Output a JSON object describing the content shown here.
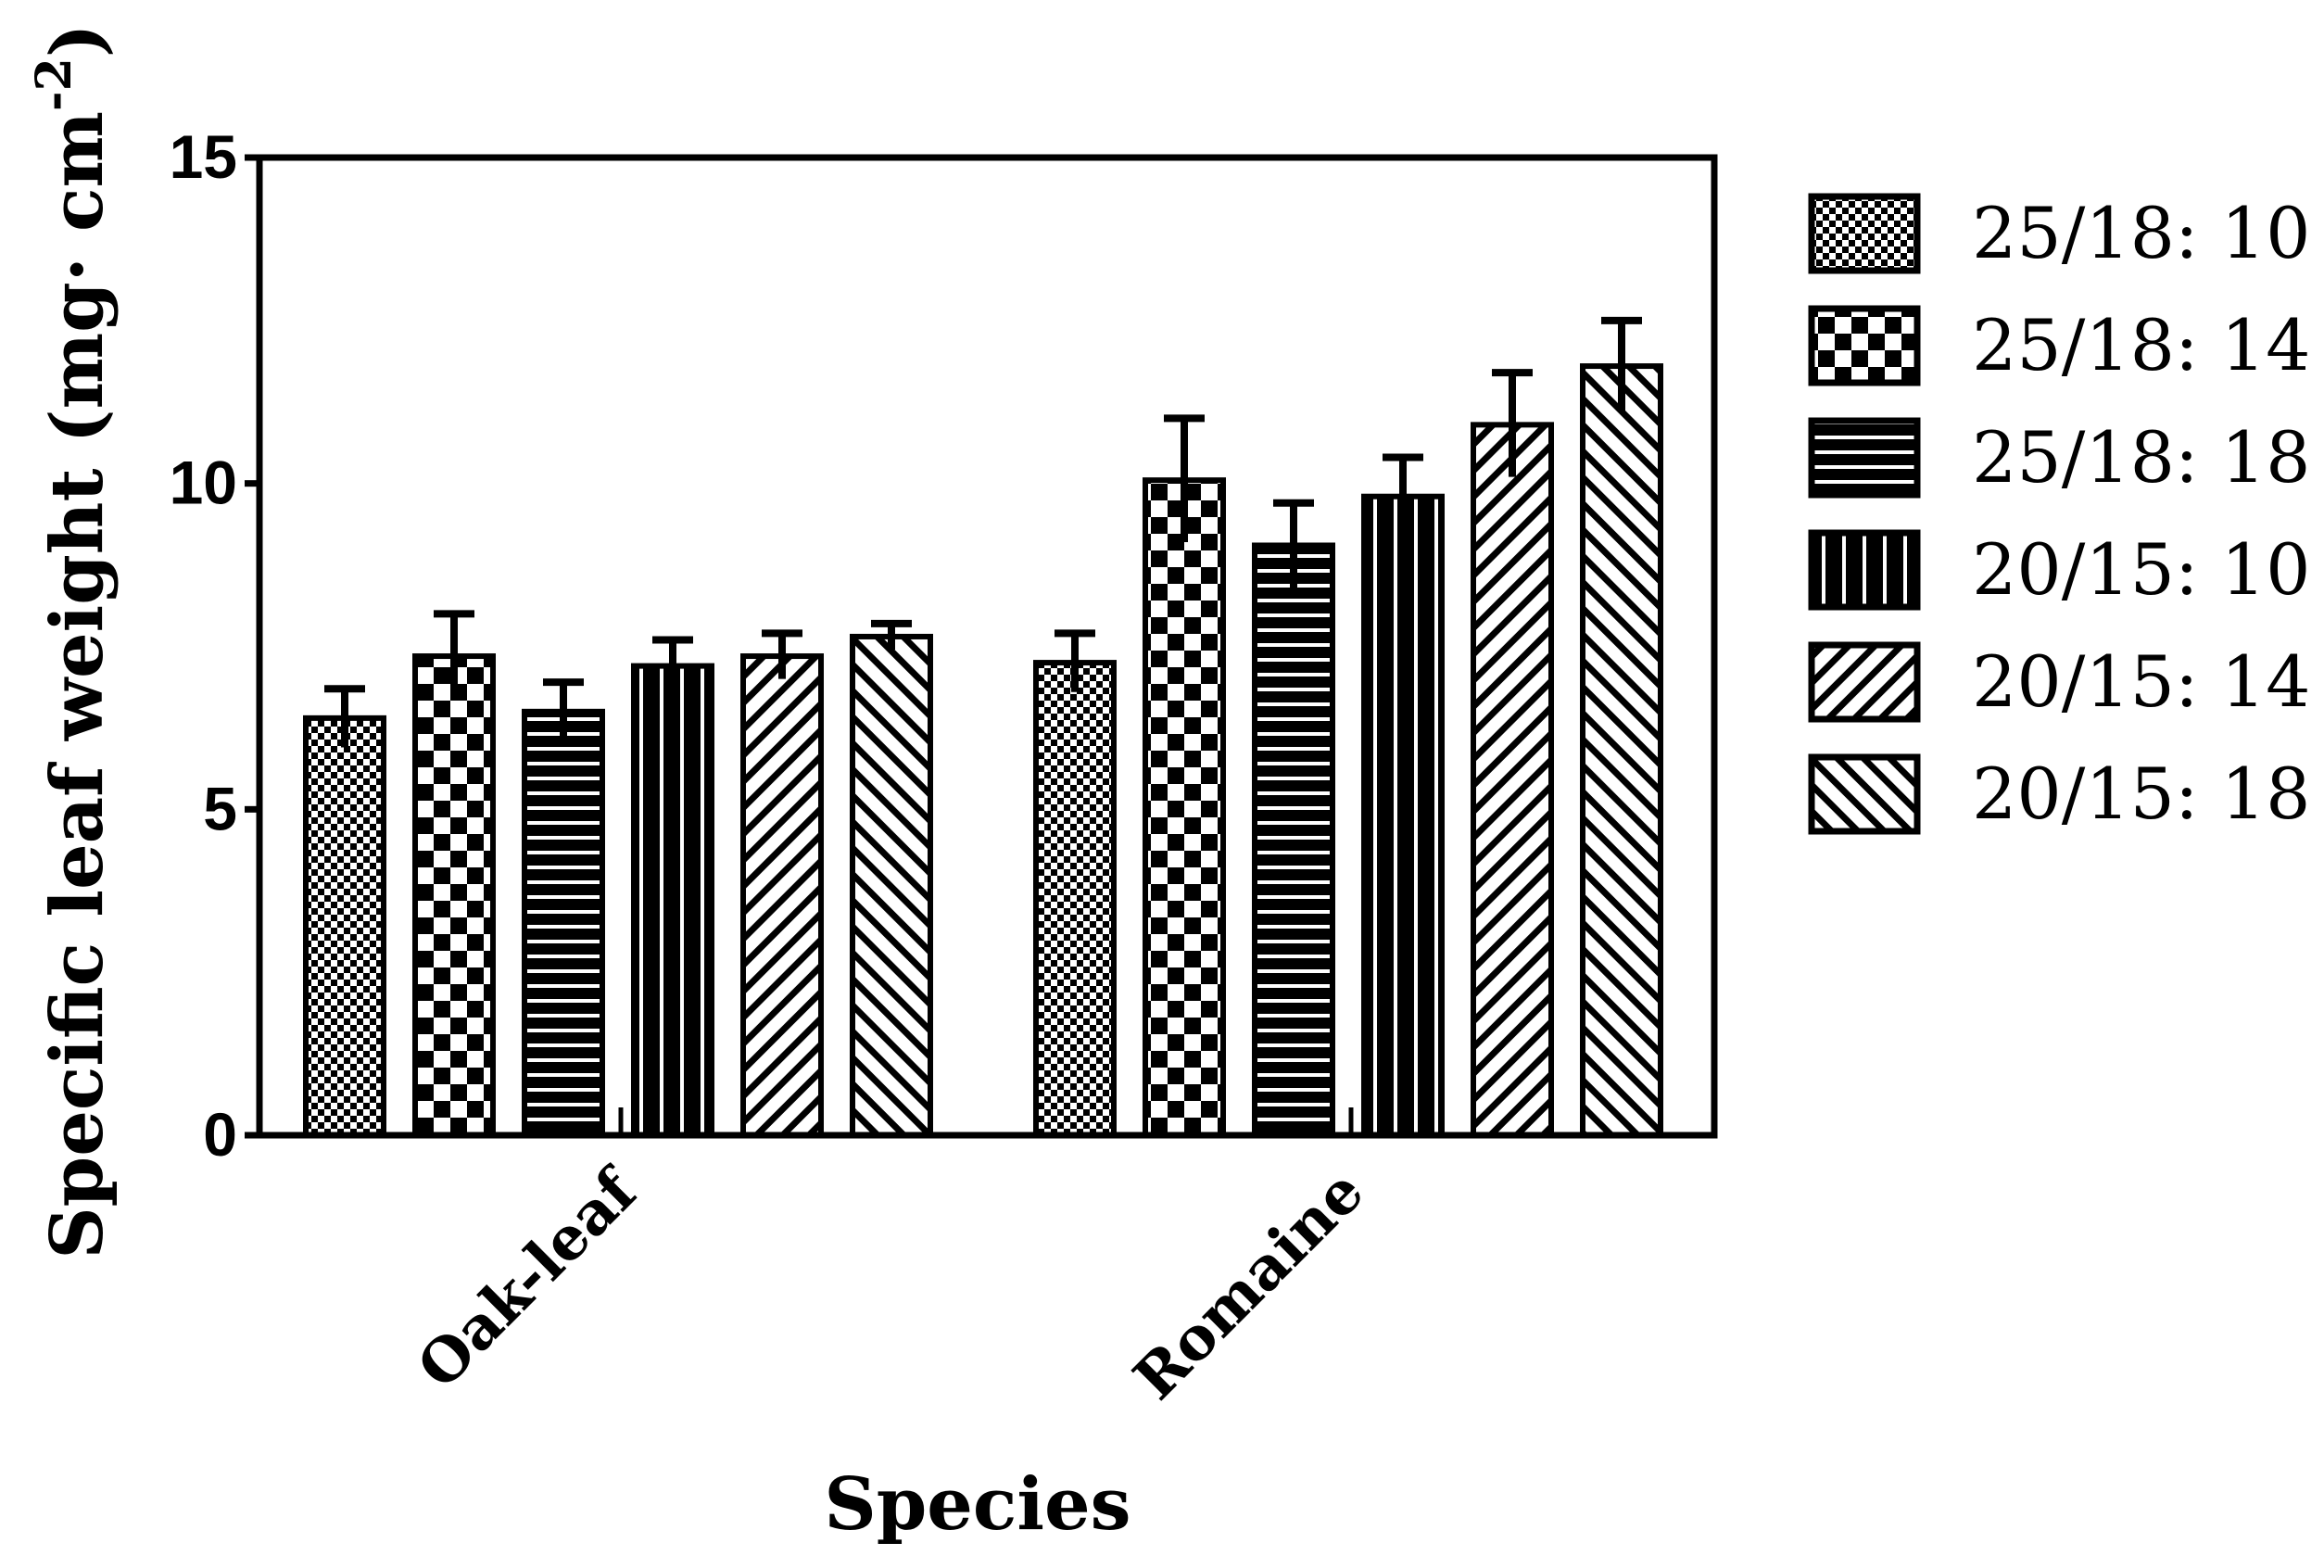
{
  "chart_data": {
    "type": "bar",
    "title": "",
    "xlabel": "Species",
    "ylabel": "Specific leaf weight (mg· cm",
    "ylabel_superscript": "-2",
    "ylabel_close": ")",
    "ylim": [
      0,
      15
    ],
    "yticks": [
      0,
      5,
      10,
      15
    ],
    "ytick_labels": [
      "0",
      "5",
      "10",
      "15"
    ],
    "categories": [
      "Oak-leaf",
      "Romaine"
    ],
    "legend_position": "right",
    "series": [
      {
        "name": "25/18: 10",
        "pattern": "fine-checker",
        "values": [
          6.4,
          7.25
        ],
        "errors": [
          0.45,
          0.45
        ]
      },
      {
        "name": "25/18: 14",
        "pattern": "coarse-checker",
        "values": [
          7.35,
          10.05
        ],
        "errors": [
          0.65,
          0.95
        ]
      },
      {
        "name": "25/18: 18",
        "pattern": "horizontal-lines",
        "values": [
          6.5,
          9.05
        ],
        "errors": [
          0.45,
          0.65
        ]
      },
      {
        "name": "20/15: 10",
        "pattern": "vertical-lines",
        "values": [
          7.2,
          9.8
        ],
        "errors": [
          0.4,
          0.6
        ]
      },
      {
        "name": "20/15: 14",
        "pattern": "diagonal-up",
        "values": [
          7.35,
          10.9
        ],
        "errors": [
          0.35,
          0.8
        ]
      },
      {
        "name": "20/15: 18",
        "pattern": "diagonal-down",
        "values": [
          7.65,
          11.8
        ],
        "errors": [
          0.2,
          0.7
        ]
      }
    ]
  }
}
